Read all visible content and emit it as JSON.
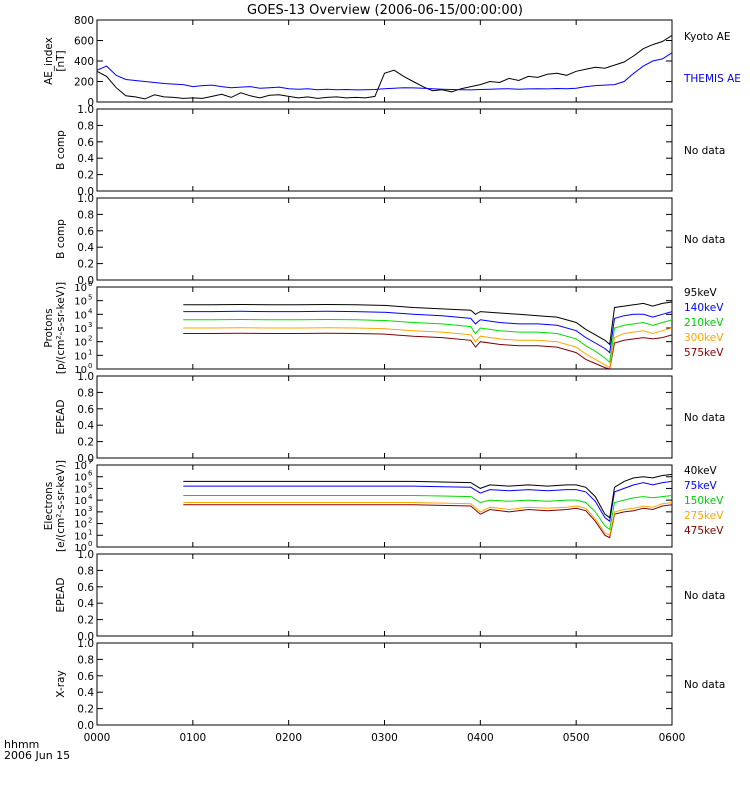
{
  "title": "GOES-13 Overview (2006-06-15/00:00:00)",
  "x_axis": {
    "corner_label_line1": "hhmm",
    "corner_label_line2": "2006 Jun 15",
    "ticks": [
      "0000",
      "0100",
      "0200",
      "0300",
      "0400",
      "0500",
      "0600"
    ]
  },
  "chart_data": [
    {
      "type": "line",
      "ylabel_lines": [
        "AE_index",
        "[nT]"
      ],
      "ylim": [
        0,
        800
      ],
      "yticks": [
        "0",
        "200",
        "400",
        "600",
        "800"
      ],
      "yscale": "linear",
      "x": [
        0,
        0.1,
        0.2,
        0.3,
        0.4,
        0.5,
        0.6,
        0.7,
        0.8,
        0.9,
        1.0,
        1.1,
        1.2,
        1.3,
        1.4,
        1.5,
        1.6,
        1.7,
        1.8,
        1.9,
        2.0,
        2.1,
        2.2,
        2.3,
        2.4,
        2.5,
        2.6,
        2.7,
        2.8,
        2.9,
        3.0,
        3.1,
        3.2,
        3.3,
        3.4,
        3.5,
        3.6,
        3.7,
        3.8,
        3.9,
        4.0,
        4.1,
        4.2,
        4.3,
        4.4,
        4.5,
        4.6,
        4.7,
        4.8,
        4.9,
        5.0,
        5.1,
        5.2,
        5.3,
        5.4,
        5.5,
        5.6,
        5.7,
        5.8,
        5.9,
        6.0
      ],
      "series": [
        {
          "name": "Kyoto AE",
          "color": "#000000",
          "values": [
            300,
            250,
            140,
            60,
            50,
            30,
            70,
            50,
            45,
            35,
            40,
            35,
            55,
            75,
            45,
            90,
            60,
            40,
            65,
            70,
            55,
            40,
            50,
            35,
            45,
            50,
            40,
            45,
            40,
            55,
            280,
            310,
            250,
            200,
            150,
            110,
            120,
            100,
            130,
            150,
            170,
            200,
            190,
            230,
            210,
            250,
            240,
            270,
            280,
            260,
            300,
            320,
            340,
            330,
            360,
            390,
            450,
            520,
            560,
            590,
            650
          ]
        },
        {
          "name": "THEMIS AE",
          "color": "#0000ff",
          "values": [
            310,
            350,
            260,
            220,
            210,
            200,
            190,
            180,
            175,
            170,
            150,
            160,
            165,
            150,
            140,
            145,
            150,
            135,
            140,
            145,
            130,
            125,
            130,
            120,
            125,
            120,
            122,
            118,
            120,
            122,
            130,
            135,
            140,
            138,
            135,
            130,
            125,
            122,
            120,
            118,
            122,
            125,
            128,
            130,
            125,
            128,
            130,
            128,
            132,
            130,
            135,
            150,
            160,
            165,
            170,
            200,
            280,
            350,
            400,
            420,
            480
          ]
        }
      ]
    },
    {
      "type": "line",
      "ylabel_lines": [
        "B comp"
      ],
      "ylim": [
        0,
        1
      ],
      "yticks": [
        "0.0",
        "0.2",
        "0.4",
        "0.6",
        "0.8",
        "1.0"
      ],
      "status": "No data"
    },
    {
      "type": "line",
      "ylabel_lines": [
        "B comp"
      ],
      "ylim": [
        0,
        1
      ],
      "yticks": [
        "0.0",
        "0.2",
        "0.4",
        "0.6",
        "0.8",
        "1.0"
      ],
      "status": "No data"
    },
    {
      "type": "line",
      "ylabel_lines": [
        "Protons",
        "[p/(cm²-s-sr-keV)]"
      ],
      "yscale": "log",
      "ylim_exp": [
        0,
        6
      ],
      "ytick_exponents": [
        0,
        1,
        2,
        3,
        4,
        5,
        6
      ],
      "x": [
        0.9,
        1.2,
        1.5,
        1.8,
        2.1,
        2.4,
        2.7,
        3.0,
        3.3,
        3.6,
        3.9,
        3.95,
        4.0,
        4.2,
        4.4,
        4.6,
        4.8,
        5.0,
        5.1,
        5.2,
        5.3,
        5.35,
        5.4,
        5.5,
        5.6,
        5.7,
        5.8,
        5.9,
        6.0
      ],
      "series": [
        {
          "name": "575keV",
          "color": "#800000",
          "values_log10": [
            2.6,
            2.6,
            2.62,
            2.6,
            2.6,
            2.62,
            2.6,
            2.55,
            2.4,
            2.3,
            2.1,
            1.6,
            2.0,
            1.8,
            1.7,
            1.7,
            1.6,
            1.2,
            0.7,
            0.4,
            0.1,
            0.0,
            1.9,
            2.1,
            2.2,
            2.3,
            2.2,
            2.3,
            2.5
          ]
        },
        {
          "name": "300keV",
          "color": "#ffa500",
          "values_log10": [
            3.0,
            3.0,
            3.02,
            3.0,
            3.0,
            3.02,
            3.0,
            2.95,
            2.8,
            2.7,
            2.5,
            2.0,
            2.4,
            2.2,
            2.1,
            2.1,
            2.0,
            1.6,
            1.1,
            0.7,
            0.3,
            0.1,
            2.3,
            2.6,
            2.7,
            2.8,
            2.6,
            2.8,
            3.0
          ]
        },
        {
          "name": "210keV",
          "color": "#00dd00",
          "values_log10": [
            3.6,
            3.6,
            3.62,
            3.6,
            3.6,
            3.62,
            3.6,
            3.55,
            3.4,
            3.3,
            3.1,
            2.6,
            3.0,
            2.8,
            2.7,
            2.7,
            2.6,
            2.2,
            1.7,
            1.3,
            0.8,
            0.5,
            3.0,
            3.2,
            3.3,
            3.4,
            3.2,
            3.4,
            3.6
          ]
        },
        {
          "name": "140keV",
          "color": "#0000ff",
          "values_log10": [
            4.2,
            4.2,
            4.22,
            4.2,
            4.2,
            4.22,
            4.2,
            4.15,
            4.0,
            3.9,
            3.7,
            3.3,
            3.6,
            3.4,
            3.3,
            3.3,
            3.2,
            2.8,
            2.3,
            1.9,
            1.5,
            1.2,
            3.7,
            3.9,
            4.0,
            4.0,
            3.8,
            4.0,
            4.2
          ]
        },
        {
          "name": "95keV",
          "color": "#000000",
          "values_log10": [
            4.7,
            4.7,
            4.72,
            4.7,
            4.7,
            4.72,
            4.7,
            4.65,
            4.5,
            4.4,
            4.3,
            4.0,
            4.2,
            4.1,
            4.0,
            3.9,
            3.8,
            3.4,
            2.9,
            2.5,
            2.1,
            1.8,
            4.5,
            4.6,
            4.7,
            4.8,
            4.6,
            4.8,
            4.9
          ]
        }
      ]
    },
    {
      "type": "line",
      "ylabel_lines": [
        "EPEAD"
      ],
      "ylim": [
        0,
        1
      ],
      "yticks": [
        "0.0",
        "0.2",
        "0.4",
        "0.6",
        "0.8",
        "1.0"
      ],
      "status": "No data"
    },
    {
      "type": "line",
      "ylabel_lines": [
        "Electrons",
        "[e/(cm²-s-sr-keV)]"
      ],
      "yscale": "log",
      "ylim_exp": [
        0,
        7
      ],
      "ytick_exponents": [
        0,
        1,
        2,
        3,
        4,
        5,
        6,
        7
      ],
      "x": [
        0.9,
        1.2,
        1.5,
        1.8,
        2.1,
        2.4,
        2.7,
        3.0,
        3.3,
        3.6,
        3.9,
        4.0,
        4.1,
        4.3,
        4.5,
        4.7,
        4.9,
        5.0,
        5.1,
        5.2,
        5.3,
        5.35,
        5.4,
        5.5,
        5.6,
        5.7,
        5.8,
        5.9,
        6.0
      ],
      "series": [
        {
          "name": "475keV",
          "color": "#800000",
          "values_log10": [
            3.6,
            3.6,
            3.6,
            3.6,
            3.6,
            3.6,
            3.6,
            3.6,
            3.6,
            3.55,
            3.5,
            2.8,
            3.2,
            3.0,
            3.2,
            3.1,
            3.2,
            3.3,
            3.1,
            2.2,
            1.0,
            0.8,
            2.8,
            3.0,
            3.1,
            3.3,
            3.2,
            3.5,
            3.6
          ]
        },
        {
          "name": "275keV",
          "color": "#ffa500",
          "values_log10": [
            3.8,
            3.8,
            3.8,
            3.8,
            3.8,
            3.8,
            3.8,
            3.8,
            3.8,
            3.75,
            3.7,
            3.0,
            3.4,
            3.2,
            3.4,
            3.3,
            3.4,
            3.5,
            3.3,
            2.4,
            1.2,
            1.0,
            3.0,
            3.2,
            3.3,
            3.5,
            3.4,
            3.7,
            3.8
          ]
        },
        {
          "name": "150keV",
          "color": "#00dd00",
          "values_log10": [
            4.4,
            4.4,
            4.4,
            4.4,
            4.4,
            4.4,
            4.4,
            4.4,
            4.4,
            4.35,
            4.3,
            3.8,
            4.0,
            3.9,
            4.0,
            3.9,
            4.0,
            4.0,
            3.8,
            3.0,
            1.8,
            1.5,
            3.8,
            4.0,
            4.2,
            4.3,
            4.2,
            4.3,
            4.4
          ]
        },
        {
          "name": "75keV",
          "color": "#0000ff",
          "values_log10": [
            5.2,
            5.2,
            5.2,
            5.2,
            5.2,
            5.2,
            5.2,
            5.2,
            5.2,
            5.15,
            5.1,
            4.6,
            4.9,
            4.8,
            4.9,
            4.8,
            4.9,
            4.9,
            4.7,
            3.9,
            2.5,
            2.2,
            4.7,
            5.0,
            5.3,
            5.5,
            5.3,
            5.5,
            5.6
          ]
        },
        {
          "name": "40keV",
          "color": "#000000",
          "values_log10": [
            5.6,
            5.6,
            5.6,
            5.6,
            5.6,
            5.6,
            5.6,
            5.6,
            5.6,
            5.55,
            5.5,
            5.0,
            5.3,
            5.2,
            5.3,
            5.2,
            5.3,
            5.3,
            5.1,
            4.3,
            2.8,
            2.5,
            5.1,
            5.6,
            5.9,
            6.0,
            5.9,
            6.1,
            6.2
          ]
        }
      ]
    },
    {
      "type": "line",
      "ylabel_lines": [
        "EPEAD"
      ],
      "ylim": [
        0,
        1
      ],
      "yticks": [
        "0.0",
        "0.2",
        "0.4",
        "0.6",
        "0.8",
        "1.0"
      ],
      "status": "No data"
    },
    {
      "type": "line",
      "ylabel_lines": [
        "X-ray"
      ],
      "ylim": [
        0,
        1
      ],
      "yticks": [
        "0.0",
        "0.2",
        "0.4",
        "0.6",
        "0.8",
        "1.0"
      ],
      "status": "No data"
    }
  ]
}
